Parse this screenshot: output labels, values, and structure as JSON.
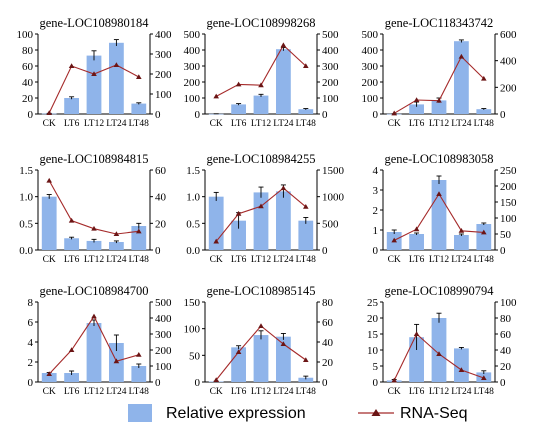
{
  "colors": {
    "bar": "#8fb4ea",
    "line": "#a52a2a",
    "marker": "#6b1515",
    "axis": "#000000"
  },
  "legend": {
    "bar_label": "Relative expression",
    "line_label": "RNA-Seq"
  },
  "chart_data": [
    {
      "type": "bar+line",
      "title": "gene-LOC108980184",
      "categories": [
        "CK",
        "LT6",
        "LT12",
        "LT24",
        "LT48"
      ],
      "series": [
        {
          "name": "Relative expression",
          "values": [
            0.5,
            20,
            73,
            89,
            13
          ],
          "errors": [
            0.3,
            1.5,
            6,
            4,
            1
          ]
        },
        {
          "name": "RNA-Seq",
          "values": [
            5,
            240,
            200,
            245,
            185
          ]
        }
      ],
      "ylim_left": [
        0,
        100
      ],
      "yticks_left": [
        0,
        20,
        40,
        60,
        80,
        100
      ],
      "ylim_right": [
        0,
        400
      ],
      "yticks_right": [
        0,
        100,
        200,
        300,
        400
      ]
    },
    {
      "type": "bar+line",
      "title": "gene-LOC108998268",
      "categories": [
        "CK",
        "LT6",
        "LT12",
        "LT24",
        "LT48"
      ],
      "series": [
        {
          "name": "Relative expression",
          "values": [
            1,
            60,
            115,
            405,
            30
          ],
          "errors": [
            0.5,
            5,
            8,
            10,
            4
          ]
        },
        {
          "name": "RNA-Seq",
          "values": [
            110,
            185,
            180,
            430,
            300
          ]
        }
      ],
      "ylim_left": [
        0,
        500
      ],
      "yticks_left": [
        0,
        100,
        200,
        300,
        400,
        500
      ],
      "ylim_right": [
        0,
        500
      ],
      "yticks_right": [
        0,
        100,
        200,
        300,
        400,
        500
      ]
    },
    {
      "type": "bar+line",
      "title": "gene-LOC118343742",
      "categories": [
        "CK",
        "LT6",
        "LT12",
        "LT24",
        "LT48"
      ],
      "series": [
        {
          "name": "Relative expression",
          "values": [
            1,
            60,
            85,
            455,
            30
          ],
          "errors": [
            0.5,
            15,
            15,
            8,
            4
          ]
        },
        {
          "name": "RNA-Seq",
          "values": [
            5,
            105,
            100,
            430,
            265
          ]
        }
      ],
      "ylim_left": [
        0,
        500
      ],
      "yticks_left": [
        0,
        100,
        200,
        300,
        400,
        500
      ],
      "ylim_right": [
        0,
        600
      ],
      "yticks_right": [
        0,
        200,
        400,
        600
      ]
    },
    {
      "type": "bar+line",
      "title": "gene-LOC108984815",
      "categories": [
        "CK",
        "LT6",
        "LT12",
        "LT24",
        "LT48"
      ],
      "series": [
        {
          "name": "Relative expression",
          "values": [
            1.0,
            0.22,
            0.17,
            0.15,
            0.45
          ],
          "errors": [
            0.04,
            0.02,
            0.03,
            0.02,
            0.05
          ]
        },
        {
          "name": "RNA-Seq",
          "values": [
            52,
            22,
            16,
            12,
            14
          ]
        }
      ],
      "ylim_left": [
        0,
        1.5
      ],
      "yticks_left": [
        0.0,
        0.5,
        1.0,
        1.5
      ],
      "ylim_right": [
        0,
        60
      ],
      "yticks_right": [
        0,
        20,
        40,
        60
      ]
    },
    {
      "type": "bar+line",
      "title": "gene-LOC108984255",
      "categories": [
        "CK",
        "LT6",
        "LT12",
        "LT24",
        "LT48"
      ],
      "series": [
        {
          "name": "Relative expression",
          "values": [
            1.0,
            0.55,
            1.08,
            1.1,
            0.55
          ],
          "errors": [
            0.08,
            0.15,
            0.1,
            0.12,
            0.06
          ]
        },
        {
          "name": "RNA-Seq",
          "values": [
            160,
            680,
            820,
            1160,
            810
          ]
        }
      ],
      "ylim_left": [
        0,
        1.5
      ],
      "yticks_left": [
        0.0,
        0.5,
        1.0,
        1.5
      ],
      "ylim_right": [
        0,
        1500
      ],
      "yticks_right": [
        0,
        500,
        1000,
        1500
      ]
    },
    {
      "type": "bar+line",
      "title": "gene-LOC108983058",
      "categories": [
        "CK",
        "LT6",
        "LT12",
        "LT24",
        "LT48"
      ],
      "series": [
        {
          "name": "Relative expression",
          "values": [
            0.9,
            0.8,
            3.5,
            0.75,
            1.3
          ],
          "errors": [
            0.1,
            0.05,
            0.2,
            0.05,
            0.05
          ]
        },
        {
          "name": "RNA-Seq",
          "values": [
            30,
            65,
            175,
            60,
            55
          ]
        }
      ],
      "ylim_left": [
        0,
        4
      ],
      "yticks_left": [
        0,
        1,
        2,
        3,
        4
      ],
      "ylim_right": [
        0,
        250
      ],
      "yticks_right": [
        0,
        50,
        100,
        150,
        200,
        250
      ]
    },
    {
      "type": "bar+line",
      "title": "gene-LOC108984700",
      "categories": [
        "CK",
        "LT6",
        "LT12",
        "LT24",
        "LT48"
      ],
      "series": [
        {
          "name": "Relative expression",
          "values": [
            0.9,
            0.9,
            5.9,
            3.9,
            1.6
          ],
          "errors": [
            0.05,
            0.2,
            0.3,
            0.8,
            0.2
          ]
        },
        {
          "name": "RNA-Seq",
          "values": [
            50,
            200,
            410,
            130,
            170
          ]
        }
      ],
      "ylim_left": [
        0,
        8
      ],
      "yticks_left": [
        0,
        2,
        4,
        6,
        8
      ],
      "ylim_right": [
        0,
        500
      ],
      "yticks_right": [
        0,
        100,
        200,
        300,
        400,
        500
      ]
    },
    {
      "type": "bar+line",
      "title": "gene-LOC108985145",
      "categories": [
        "CK",
        "LT6",
        "LT12",
        "LT24",
        "LT48"
      ],
      "series": [
        {
          "name": "Relative expression",
          "values": [
            1,
            65,
            88,
            85,
            8
          ],
          "errors": [
            0.5,
            3,
            8,
            6,
            3
          ]
        },
        {
          "name": "RNA-Seq",
          "values": [
            2,
            30,
            56,
            38,
            22
          ]
        }
      ],
      "ylim_left": [
        0,
        150
      ],
      "yticks_left": [
        0,
        50,
        100,
        150
      ],
      "ylim_right": [
        0,
        80
      ],
      "yticks_right": [
        0,
        20,
        40,
        60,
        80
      ]
    },
    {
      "type": "bar+line",
      "title": "gene-LOC108990794",
      "categories": [
        "CK",
        "LT6",
        "LT12",
        "LT24",
        "LT48"
      ],
      "series": [
        {
          "name": "Relative expression",
          "values": [
            0.5,
            14,
            20,
            10.5,
            3
          ],
          "errors": [
            0.3,
            4,
            1.5,
            0.3,
            0.5
          ]
        },
        {
          "name": "RNA-Seq",
          "values": [
            2,
            60,
            35,
            15,
            5
          ]
        }
      ],
      "ylim_left": [
        0,
        25
      ],
      "yticks_left": [
        0,
        5,
        10,
        15,
        20,
        25
      ],
      "ylim_right": [
        0,
        100
      ],
      "yticks_right": [
        0,
        20,
        40,
        60,
        80,
        100
      ]
    }
  ]
}
